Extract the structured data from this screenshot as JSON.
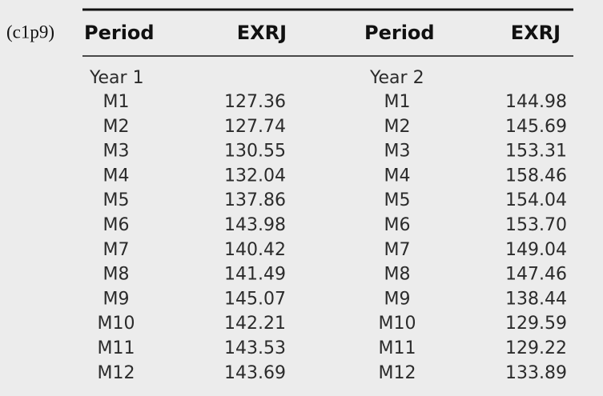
{
  "label": "(c1p9)",
  "table": {
    "headers": [
      "Period",
      "EXRJ",
      "Period",
      "EXRJ"
    ],
    "groups": [
      {
        "title": "Year 1",
        "rows": [
          [
            "M1",
            "127.36"
          ],
          [
            "M2",
            "127.74"
          ],
          [
            "M3",
            "130.55"
          ],
          [
            "M4",
            "132.04"
          ],
          [
            "M5",
            "137.86"
          ],
          [
            "M6",
            "143.98"
          ],
          [
            "M7",
            "140.42"
          ],
          [
            "M8",
            "141.49"
          ],
          [
            "M9",
            "145.07"
          ],
          [
            "M10",
            "142.21"
          ],
          [
            "M11",
            "143.53"
          ],
          [
            "M12",
            "143.69"
          ]
        ]
      },
      {
        "title": "Year 2",
        "rows": [
          [
            "M1",
            "144.98"
          ],
          [
            "M2",
            "145.69"
          ],
          [
            "M3",
            "153.31"
          ],
          [
            "M4",
            "158.46"
          ],
          [
            "M5",
            "154.04"
          ],
          [
            "M6",
            "153.70"
          ],
          [
            "M7",
            "149.04"
          ],
          [
            "M8",
            "147.46"
          ],
          [
            "M9",
            "138.44"
          ],
          [
            "M10",
            "129.59"
          ],
          [
            "M11",
            "129.22"
          ],
          [
            "M12",
            "133.89"
          ]
        ]
      }
    ]
  }
}
